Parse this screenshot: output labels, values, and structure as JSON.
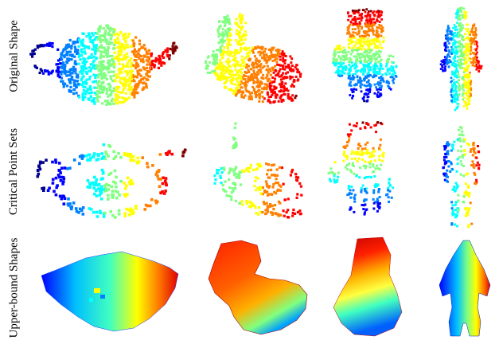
{
  "rows": [
    {
      "label": "Original Shape"
    },
    {
      "label": "Critical Point Sets"
    },
    {
      "label": "Upper-bound Shapes"
    }
  ],
  "shapes": [
    "teapot",
    "bunny",
    "hand",
    "human"
  ],
  "colormap": [
    "#00008f",
    "#0000ff",
    "#0080ff",
    "#00ffff",
    "#80ff80",
    "#ffff00",
    "#ff8000",
    "#ff0000",
    "#800000"
  ]
}
